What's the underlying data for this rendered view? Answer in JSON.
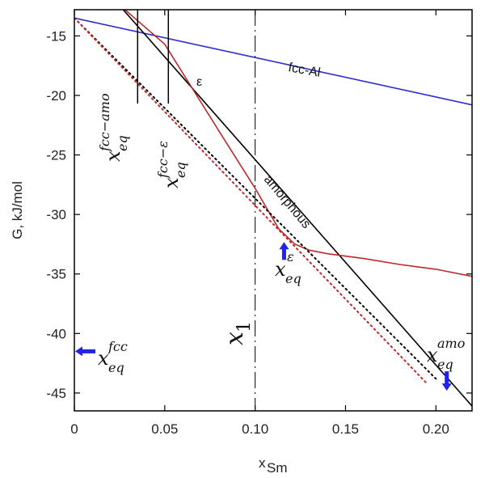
{
  "chart_data": {
    "type": "line",
    "xlabel": "x",
    "xlabel_sub": "Sm",
    "ylabel": "G, kJ/mol",
    "xlim": [
      0,
      0.22
    ],
    "ylim": [
      -46.5,
      -12.8
    ],
    "xticks": [
      0,
      0.05,
      0.1,
      0.15,
      0.2
    ],
    "xtick_labels": [
      "0",
      "0.05",
      "0.10",
      "0.15",
      "0.20"
    ],
    "yticks": [
      -15,
      -20,
      -25,
      -30,
      -35,
      -40,
      -45
    ],
    "ytick_labels": [
      "-15",
      "-20",
      "-25",
      "-30",
      "-35",
      "-40",
      "-45"
    ],
    "grid": false,
    "series": [
      {
        "name": "fcc-Al",
        "color": "#2b2bd0",
        "style": "solid",
        "x": [
          0,
          0.22
        ],
        "y": [
          -13.5,
          -20.8
        ]
      },
      {
        "name": "amorphous",
        "color": "#000000",
        "style": "solid",
        "x": [
          0.027,
          0.22
        ],
        "y": [
          -12.8,
          -46.1
        ]
      },
      {
        "name": "ε",
        "color": "#c0282a",
        "style": "solid",
        "x": [
          0.028,
          0.05,
          0.08,
          0.1,
          0.113,
          0.122,
          0.13,
          0.14,
          0.16,
          0.18,
          0.2,
          0.22
        ],
        "y": [
          -12.8,
          -15.7,
          -23.0,
          -27.8,
          -31.2,
          -32.5,
          -33.0,
          -33.3,
          -33.7,
          -34.2,
          -34.6,
          -35.2
        ]
      },
      {
        "name": "",
        "color": "#000000",
        "style": "dotted",
        "x": [
          0,
          0.2
        ],
        "y": [
          -13.5,
          -43.8
        ]
      },
      {
        "name": "",
        "color": "#c0282a",
        "style": "dotted",
        "x": [
          0,
          0.195
        ],
        "y": [
          -13.5,
          -44.2
        ]
      }
    ],
    "annotations": {
      "fcc_label": "fcc-Al",
      "amorphous_label": "amorphous",
      "eps_label": "ε",
      "x1_main": "x",
      "x1_sub": "1",
      "x1_value": 0.1,
      "fcc_amo_line_x": 0.035,
      "fcc_eps_line_x": 0.052,
      "x_eq_main": "x",
      "x_eq_sub": "eq",
      "sup_fcc_amo": "fcc−amo",
      "sup_fcc_eps": "fcc−ε",
      "sup_fcc": "fcc",
      "sup_eps": "ε",
      "sup_amo": "amo",
      "arrow_color": "#2222ee",
      "eps_eq_point": [
        0.116,
        -33.0
      ],
      "amo_eq_point": [
        0.206,
        -44.4
      ],
      "fcc_eq_level": -41.5
    }
  }
}
